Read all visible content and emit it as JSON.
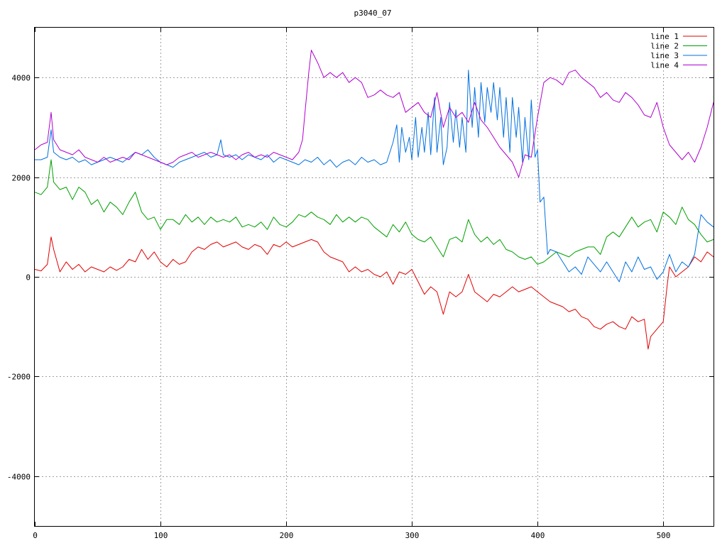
{
  "chart_data": {
    "type": "line",
    "title": "p3040_07",
    "xlabel": "",
    "ylabel": "",
    "xlim": [
      0,
      540
    ],
    "ylim": [
      -5000,
      5000
    ],
    "grid": true,
    "legend_position": "top-right",
    "x_ticks": [
      0,
      100,
      200,
      300,
      400,
      500
    ],
    "y_ticks": [
      -4000,
      -2000,
      0,
      2000,
      4000
    ],
    "x_tick_labels": [
      "0",
      "100",
      "200",
      "300",
      "400",
      "500"
    ],
    "y_tick_labels": [
      "-4000",
      "-2000",
      "0",
      "2000",
      "4000"
    ],
    "series": [
      {
        "name": "line 1",
        "color": "#e00000",
        "x": [
          0,
          5,
          10,
          13,
          15,
          20,
          25,
          30,
          35,
          40,
          45,
          50,
          55,
          60,
          65,
          70,
          75,
          80,
          85,
          90,
          95,
          100,
          105,
          110,
          115,
          120,
          125,
          130,
          135,
          140,
          145,
          150,
          155,
          160,
          165,
          170,
          175,
          180,
          185,
          190,
          195,
          200,
          205,
          210,
          215,
          220,
          225,
          230,
          235,
          240,
          245,
          250,
          255,
          260,
          265,
          270,
          275,
          280,
          285,
          290,
          295,
          300,
          305,
          310,
          315,
          320,
          325,
          330,
          335,
          340,
          345,
          350,
          355,
          360,
          365,
          370,
          375,
          380,
          385,
          390,
          395,
          400,
          405,
          410,
          415,
          420,
          425,
          430,
          435,
          440,
          445,
          450,
          455,
          460,
          465,
          470,
          475,
          480,
          485,
          488,
          490,
          495,
          500,
          503,
          505,
          510,
          515,
          520,
          525,
          530,
          535,
          540
        ],
        "y": [
          150,
          120,
          250,
          800,
          550,
          100,
          300,
          150,
          250,
          100,
          200,
          150,
          100,
          200,
          130,
          200,
          350,
          300,
          550,
          350,
          500,
          300,
          200,
          350,
          250,
          300,
          500,
          600,
          550,
          650,
          700,
          600,
          650,
          700,
          600,
          550,
          650,
          600,
          450,
          650,
          600,
          700,
          600,
          650,
          700,
          750,
          700,
          500,
          400,
          350,
          300,
          100,
          200,
          100,
          150,
          50,
          0,
          100,
          -150,
          100,
          50,
          150,
          -100,
          -350,
          -200,
          -300,
          -750,
          -300,
          -400,
          -300,
          50,
          -300,
          -400,
          -500,
          -350,
          -400,
          -300,
          -200,
          -300,
          -250,
          -200,
          -300,
          -400,
          -500,
          -550,
          -600,
          -700,
          -650,
          -800,
          -850,
          -1000,
          -1050,
          -950,
          -900,
          -1000,
          -1050,
          -800,
          -900,
          -850,
          -1450,
          -1200,
          -1050,
          -900,
          -200,
          200,
          0,
          100,
          200,
          400,
          300,
          500,
          400
        ]
      },
      {
        "name": "line 2",
        "color": "#00a000",
        "x": [
          0,
          5,
          10,
          13,
          15,
          20,
          25,
          30,
          35,
          40,
          45,
          50,
          55,
          60,
          65,
          70,
          75,
          80,
          85,
          90,
          95,
          100,
          105,
          110,
          115,
          120,
          125,
          130,
          135,
          140,
          145,
          150,
          155,
          160,
          165,
          170,
          175,
          180,
          185,
          190,
          195,
          200,
          205,
          210,
          215,
          220,
          225,
          230,
          235,
          240,
          245,
          250,
          255,
          260,
          265,
          270,
          275,
          280,
          285,
          290,
          295,
          300,
          305,
          310,
          315,
          320,
          325,
          330,
          335,
          340,
          345,
          350,
          355,
          360,
          365,
          370,
          375,
          380,
          385,
          390,
          395,
          400,
          405,
          410,
          415,
          420,
          425,
          430,
          435,
          440,
          445,
          450,
          455,
          460,
          465,
          470,
          475,
          480,
          485,
          490,
          495,
          500,
          505,
          510,
          515,
          520,
          525,
          530,
          535,
          540
        ],
        "y": [
          1700,
          1650,
          1800,
          2350,
          1900,
          1750,
          1800,
          1550,
          1800,
          1700,
          1450,
          1550,
          1300,
          1500,
          1400,
          1250,
          1500,
          1700,
          1300,
          1150,
          1200,
          950,
          1150,
          1150,
          1050,
          1250,
          1100,
          1200,
          1050,
          1200,
          1100,
          1150,
          1100,
          1200,
          1000,
          1050,
          1000,
          1100,
          950,
          1200,
          1050,
          1000,
          1100,
          1250,
          1200,
          1300,
          1200,
          1150,
          1050,
          1250,
          1100,
          1200,
          1100,
          1200,
          1150,
          1000,
          900,
          800,
          1050,
          900,
          1100,
          850,
          750,
          700,
          800,
          600,
          400,
          750,
          800,
          700,
          1150,
          850,
          700,
          800,
          650,
          750,
          550,
          500,
          400,
          350,
          400,
          250,
          300,
          400,
          500,
          450,
          400,
          500,
          550,
          600,
          600,
          450,
          800,
          900,
          800,
          1000,
          1200,
          1000,
          1100,
          1150,
          900,
          1300,
          1200,
          1050,
          1400,
          1150,
          1050,
          850,
          700,
          750
        ]
      },
      {
        "name": "line 3",
        "color": "#0070e0",
        "x": [
          0,
          5,
          10,
          13,
          15,
          20,
          25,
          30,
          35,
          40,
          45,
          50,
          55,
          60,
          65,
          70,
          75,
          80,
          85,
          90,
          95,
          100,
          105,
          110,
          115,
          120,
          125,
          130,
          135,
          140,
          145,
          148,
          150,
          155,
          160,
          165,
          170,
          175,
          180,
          185,
          190,
          195,
          200,
          205,
          210,
          215,
          220,
          225,
          230,
          235,
          240,
          245,
          250,
          255,
          260,
          265,
          270,
          275,
          280,
          285,
          288,
          290,
          292,
          295,
          298,
          300,
          303,
          305,
          308,
          310,
          313,
          315,
          318,
          320,
          323,
          325,
          328,
          330,
          333,
          335,
          338,
          340,
          343,
          345,
          348,
          350,
          353,
          355,
          358,
          360,
          363,
          365,
          368,
          370,
          373,
          375,
          378,
          380,
          383,
          385,
          388,
          390,
          393,
          395,
          398,
          400,
          402,
          405,
          408,
          410,
          415,
          420,
          425,
          430,
          435,
          440,
          445,
          450,
          455,
          460,
          465,
          470,
          475,
          480,
          485,
          490,
          495,
          500,
          505,
          510,
          515,
          520,
          525,
          530,
          535,
          540
        ],
        "y": [
          2350,
          2350,
          2400,
          2950,
          2500,
          2400,
          2350,
          2400,
          2300,
          2350,
          2250,
          2300,
          2350,
          2400,
          2350,
          2300,
          2400,
          2500,
          2450,
          2550,
          2400,
          2300,
          2250,
          2200,
          2300,
          2350,
          2400,
          2450,
          2500,
          2400,
          2450,
          2750,
          2450,
          2400,
          2450,
          2350,
          2450,
          2400,
          2350,
          2450,
          2300,
          2400,
          2350,
          2300,
          2250,
          2350,
          2300,
          2400,
          2250,
          2350,
          2200,
          2300,
          2350,
          2250,
          2400,
          2300,
          2350,
          2250,
          2300,
          2700,
          3050,
          2300,
          3000,
          2500,
          2800,
          2350,
          3200,
          2400,
          3000,
          2500,
          3300,
          2450,
          3600,
          2500,
          3200,
          2250,
          2600,
          3500,
          2700,
          3350,
          2600,
          3200,
          2500,
          4150,
          3000,
          3800,
          2800,
          3900,
          3100,
          3800,
          3300,
          3900,
          3150,
          3800,
          2800,
          3600,
          2500,
          3600,
          2800,
          3400,
          2300,
          3200,
          2350,
          3550,
          2400,
          2550,
          1500,
          1600,
          450,
          550,
          500,
          300,
          100,
          200,
          50,
          400,
          250,
          100,
          300,
          100,
          -100,
          300,
          100,
          400,
          150,
          200,
          -50,
          100,
          450,
          100,
          300,
          200,
          450,
          1250,
          1100,
          1000
        ]
      },
      {
        "name": "line 4",
        "color": "#b000d0",
        "x": [
          0,
          5,
          10,
          13,
          15,
          20,
          25,
          30,
          35,
          40,
          45,
          50,
          55,
          60,
          65,
          70,
          75,
          80,
          85,
          90,
          95,
          100,
          105,
          110,
          115,
          120,
          125,
          130,
          135,
          140,
          145,
          150,
          155,
          160,
          165,
          170,
          175,
          180,
          185,
          190,
          195,
          200,
          205,
          210,
          213,
          215,
          218,
          220,
          225,
          230,
          235,
          240,
          245,
          250,
          255,
          260,
          265,
          270,
          275,
          280,
          285,
          290,
          295,
          300,
          305,
          310,
          315,
          320,
          325,
          330,
          335,
          340,
          345,
          350,
          355,
          360,
          365,
          370,
          375,
          380,
          385,
          390,
          395,
          400,
          405,
          410,
          415,
          420,
          425,
          430,
          435,
          440,
          445,
          450,
          455,
          460,
          465,
          470,
          475,
          480,
          485,
          490,
          495,
          500,
          505,
          510,
          515,
          520,
          525,
          530,
          535,
          540
        ],
        "y": [
          2550,
          2650,
          2700,
          3300,
          2750,
          2550,
          2500,
          2450,
          2550,
          2400,
          2350,
          2300,
          2400,
          2300,
          2350,
          2400,
          2350,
          2500,
          2450,
          2400,
          2350,
          2300,
          2250,
          2300,
          2400,
          2450,
          2500,
          2400,
          2450,
          2500,
          2450,
          2400,
          2450,
          2350,
          2450,
          2500,
          2400,
          2450,
          2400,
          2500,
          2450,
          2400,
          2350,
          2500,
          2750,
          3300,
          4100,
          4550,
          4300,
          4000,
          4100,
          4000,
          4100,
          3900,
          4000,
          3900,
          3600,
          3650,
          3750,
          3650,
          3600,
          3700,
          3300,
          3400,
          3500,
          3300,
          3200,
          3700,
          3000,
          3400,
          3200,
          3300,
          3100,
          3500,
          3150,
          3000,
          2800,
          2600,
          2450,
          2300,
          2000,
          2450,
          2400,
          3200,
          3900,
          4000,
          3950,
          3850,
          4100,
          4150,
          4000,
          3900,
          3800,
          3600,
          3700,
          3550,
          3500,
          3700,
          3600,
          3450,
          3250,
          3200,
          3500,
          3000,
          2650,
          2500,
          2350,
          2500,
          2300,
          2600,
          3000,
          3500
        ]
      }
    ]
  }
}
